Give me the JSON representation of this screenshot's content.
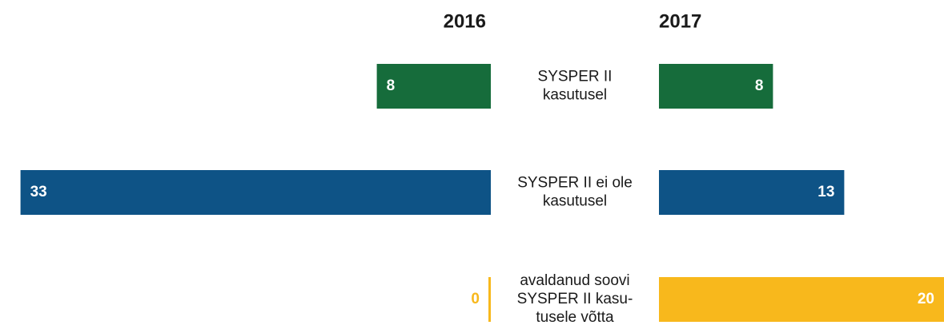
{
  "chart_data": {
    "type": "butterfly-bar",
    "categories": [
      [
        "SYSPER II",
        "kasutusel"
      ],
      [
        "SYSPER II ei ole",
        "kasutusel"
      ],
      [
        "avaldanud soovi",
        "SYSPER II kasu-",
        "tusele võtta"
      ]
    ],
    "colors": [
      "#166c3b",
      "#0e5386",
      "#f8b81c"
    ],
    "series": [
      {
        "name": "2016",
        "values": [
          8,
          33,
          0
        ]
      },
      {
        "name": "2017",
        "values": [
          8,
          13,
          20
        ]
      }
    ]
  }
}
